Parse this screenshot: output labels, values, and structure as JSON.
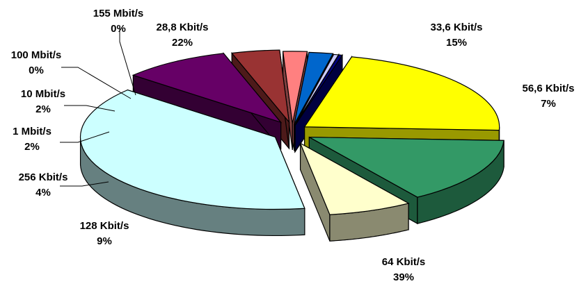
{
  "chart_data": {
    "type": "pie",
    "title": "",
    "slices": [
      {
        "label": "28,8 Kbit/s",
        "percent": "22%",
        "value": 22,
        "color": "#ffff00",
        "side": "#999900"
      },
      {
        "label": "33,6 Kbit/s",
        "percent": "15%",
        "value": 15,
        "color": "#339966",
        "side": "#1d5a3c"
      },
      {
        "label": "56,6 Kbit/s",
        "percent": "7%",
        "value": 7,
        "color": "#ffffcc",
        "side": "#8a8a70"
      },
      {
        "label": "64 Kbit/s",
        "percent": "39%",
        "value": 39,
        "color": "#ccffff",
        "side": "#668080"
      },
      {
        "label": "128 Kbit/s",
        "percent": "9%",
        "value": 9,
        "color": "#660066",
        "side": "#330033"
      },
      {
        "label": "256 Kbit/s",
        "percent": "4%",
        "value": 4,
        "color": "#993333",
        "side": "#4d1a1a"
      },
      {
        "label": "1 Mbit/s",
        "percent": "2%",
        "value": 2,
        "color": "#ff8080",
        "side": "#804040"
      },
      {
        "label": "10 Mbit/s",
        "percent": "2%",
        "value": 2,
        "color": "#0066cc",
        "side": "#003366"
      },
      {
        "label": "100 Mbit/s",
        "percent": "0%",
        "value": 0.4,
        "color": "#ccccff",
        "side": "#666680"
      },
      {
        "label": "155 Mbit/s",
        "percent": "0%",
        "value": 0.3,
        "color": "#000080",
        "side": "#000040"
      }
    ]
  }
}
